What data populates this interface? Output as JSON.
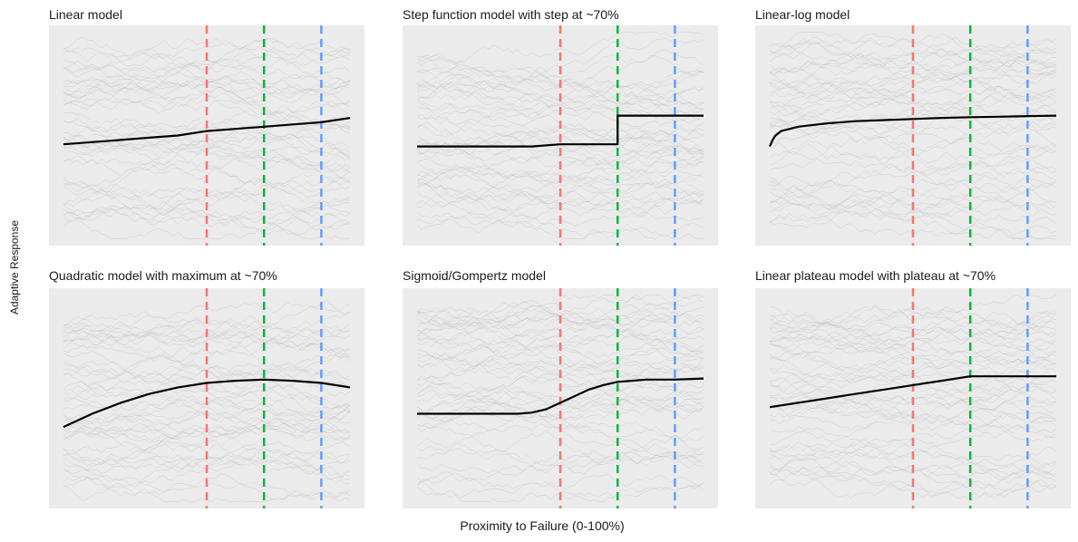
{
  "figure": {
    "ylabel": "Adaptive Response",
    "xlabel": "Proximity to Failure (0-100%)"
  },
  "colors": {
    "panel_bg": "#ebebeb",
    "trajectory": "#a8a8a8",
    "model_line": "#000000",
    "vline_50": "#f8766d",
    "vline_70": "#00ba38",
    "vline_90": "#619cff"
  },
  "chart_data": [
    {
      "type": "line",
      "title": "Linear model",
      "model": "linear",
      "x": [
        0,
        10,
        20,
        30,
        40,
        50,
        60,
        70,
        80,
        90,
        100
      ],
      "y": [
        0.46,
        0.47,
        0.48,
        0.49,
        0.5,
        0.52,
        0.53,
        0.54,
        0.55,
        0.56,
        0.58
      ],
      "vlines": [
        50,
        70,
        90
      ],
      "xlim": [
        0,
        100
      ],
      "ylim": [
        0,
        1
      ]
    },
    {
      "type": "line",
      "title": "Step function model with step at ~70%",
      "model": "step",
      "x": [
        0,
        10,
        20,
        30,
        40,
        50,
        60,
        70,
        70,
        80,
        90,
        100
      ],
      "y": [
        0.45,
        0.45,
        0.45,
        0.45,
        0.45,
        0.46,
        0.46,
        0.46,
        0.59,
        0.59,
        0.59,
        0.59
      ],
      "vlines": [
        50,
        70,
        90
      ],
      "xlim": [
        0,
        100
      ],
      "ylim": [
        0,
        1
      ]
    },
    {
      "type": "line",
      "title": "Linear-log model",
      "model": "linear-log",
      "x": [
        0,
        1,
        2,
        4,
        7,
        10,
        20,
        30,
        40,
        50,
        60,
        70,
        80,
        90,
        100
      ],
      "y": [
        0.45,
        0.48,
        0.5,
        0.52,
        0.53,
        0.54,
        0.555,
        0.565,
        0.57,
        0.575,
        0.58,
        0.583,
        0.585,
        0.588,
        0.59
      ],
      "vlines": [
        50,
        70,
        90
      ],
      "xlim": [
        0,
        100
      ],
      "ylim": [
        0,
        1
      ]
    },
    {
      "type": "line",
      "title": "Quadratic model with maximum at ~70%",
      "model": "quadratic",
      "x": [
        0,
        10,
        20,
        30,
        40,
        50,
        60,
        70,
        80,
        90,
        100
      ],
      "y": [
        0.37,
        0.43,
        0.48,
        0.52,
        0.55,
        0.57,
        0.58,
        0.585,
        0.58,
        0.57,
        0.55
      ],
      "vlines": [
        50,
        70,
        90
      ],
      "xlim": [
        0,
        100
      ],
      "ylim": [
        0,
        1
      ]
    },
    {
      "type": "line",
      "title": "Sigmoid/Gompertz model",
      "model": "sigmoid",
      "x": [
        0,
        10,
        20,
        30,
        35,
        40,
        45,
        50,
        55,
        60,
        65,
        70,
        75,
        80,
        90,
        100
      ],
      "y": [
        0.43,
        0.43,
        0.43,
        0.43,
        0.43,
        0.435,
        0.45,
        0.48,
        0.51,
        0.54,
        0.56,
        0.575,
        0.58,
        0.585,
        0.585,
        0.59
      ],
      "vlines": [
        50,
        70,
        90
      ],
      "xlim": [
        0,
        100
      ],
      "ylim": [
        0,
        1
      ]
    },
    {
      "type": "line",
      "title": "Linear plateau model with plateau at ~70%",
      "model": "linear-plateau",
      "x": [
        0,
        10,
        20,
        30,
        40,
        50,
        60,
        70,
        80,
        90,
        100
      ],
      "y": [
        0.46,
        0.48,
        0.5,
        0.52,
        0.54,
        0.56,
        0.58,
        0.6,
        0.6,
        0.6,
        0.6
      ],
      "vlines": [
        50,
        70,
        90
      ],
      "xlim": [
        0,
        100
      ],
      "ylim": [
        0,
        1
      ]
    }
  ]
}
